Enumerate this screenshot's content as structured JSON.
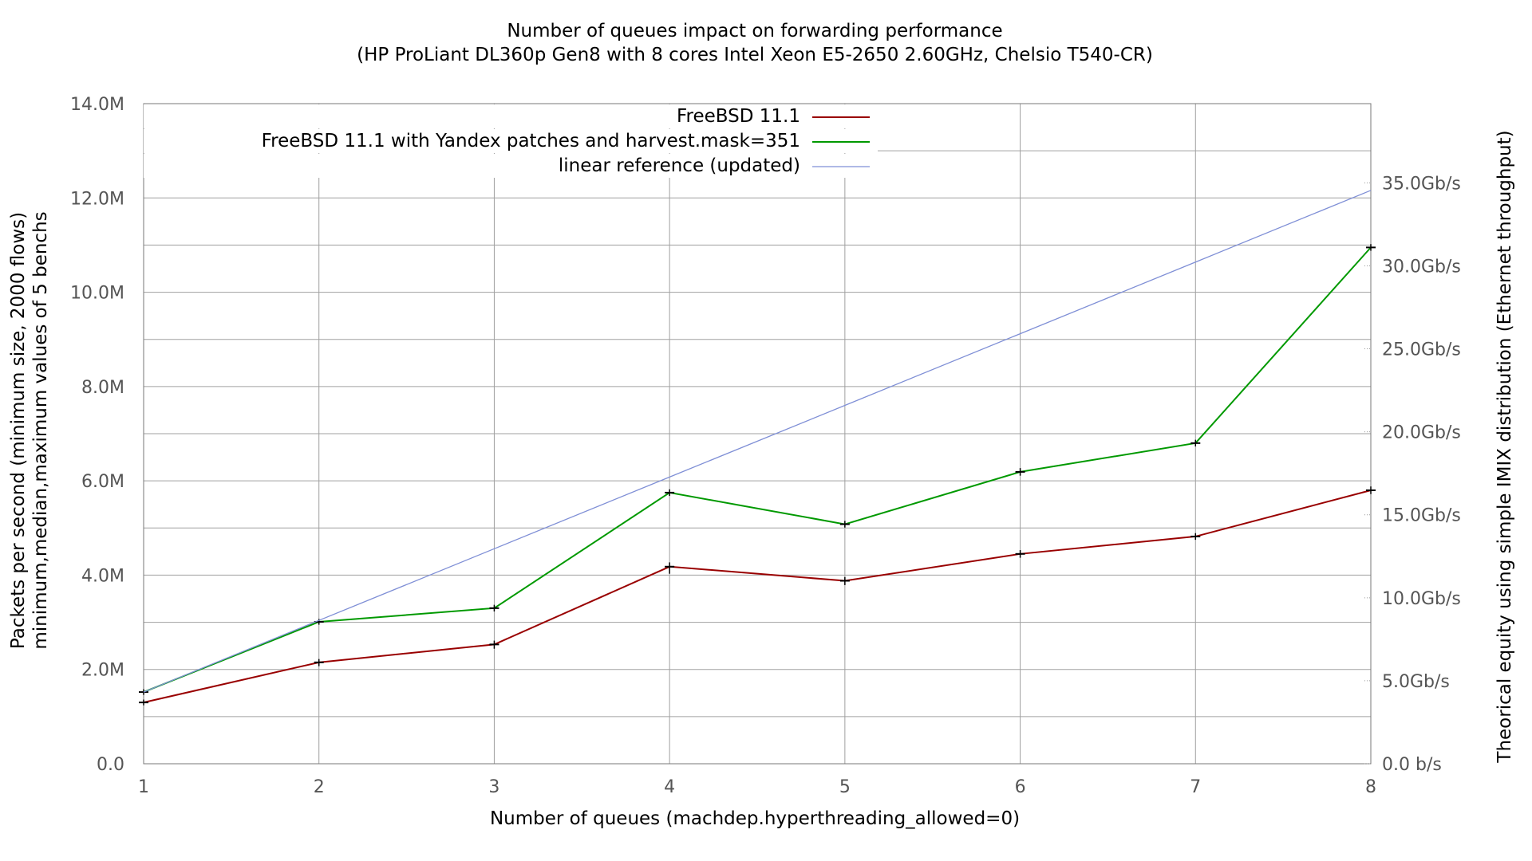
{
  "chart_data": {
    "type": "line",
    "title_line1": "Number of queues impact on forwarding performance",
    "title_line2": "(HP ProLiant DL360p Gen8 with 8 cores Intel Xeon E5-2650 2.60GHz, Chelsio T540-CR)",
    "xlabel": "Number of queues (machdep.hyperthreading_allowed=0)",
    "ylabel_line1": "Packets per second (minimum size, 2000 flows)",
    "ylabel_line2": "minimum,median,maximum values of 5 benchs",
    "y2label": "Theorical equity using simple IMIX distribution (Ethernet throughput)",
    "x": [
      1,
      2,
      3,
      4,
      5,
      6,
      7,
      8
    ],
    "xlim": [
      1,
      8
    ],
    "ylim": [
      0,
      14000000
    ],
    "grid": true,
    "legend_position": "top-center",
    "x_ticks": [
      "1",
      "2",
      "3",
      "4",
      "5",
      "6",
      "7",
      "8"
    ],
    "y_ticks": [
      {
        "value": 0,
        "label": "0.0"
      },
      {
        "value": 2000000,
        "label": "2.0M"
      },
      {
        "value": 4000000,
        "label": "4.0M"
      },
      {
        "value": 6000000,
        "label": "6.0M"
      },
      {
        "value": 8000000,
        "label": "8.0M"
      },
      {
        "value": 10000000,
        "label": "10.0M"
      },
      {
        "value": 12000000,
        "label": "12.0M"
      },
      {
        "value": 14000000,
        "label": "14.0M"
      }
    ],
    "y2_ticks": [
      {
        "value": 0,
        "label": "0.0 b/s"
      },
      {
        "value": 1760000,
        "label": "5.0Gb/s"
      },
      {
        "value": 3520000,
        "label": "10.0Gb/s"
      },
      {
        "value": 5280000,
        "label": "15.0Gb/s"
      },
      {
        "value": 7040000,
        "label": "20.0Gb/s"
      },
      {
        "value": 8800000,
        "label": "25.0Gb/s"
      },
      {
        "value": 10560000,
        "label": "30.0Gb/s"
      },
      {
        "value": 12320000,
        "label": "35.0Gb/s"
      }
    ],
    "series": [
      {
        "name": "FreeBSD 11.1",
        "color": "#990000",
        "values": [
          1300000,
          2150000,
          2530000,
          4180000,
          3880000,
          4450000,
          4820000,
          5800000
        ],
        "min": [
          1290000,
          2120000,
          2490000,
          4080000,
          3840000,
          4420000,
          4800000,
          5770000
        ],
        "max": [
          1310000,
          2170000,
          2560000,
          4220000,
          3910000,
          4480000,
          4840000,
          5830000
        ],
        "error_bars": true
      },
      {
        "name": "FreeBSD 11.1 with Yandex patches and harvest.mask=351",
        "color": "#009900",
        "values": [
          1520000,
          3010000,
          3300000,
          5750000,
          5080000,
          6190000,
          6800000,
          10950000
        ],
        "min": [
          1510000,
          3000000,
          3280000,
          5730000,
          5060000,
          6160000,
          6780000,
          10930000
        ],
        "max": [
          1530000,
          3020000,
          3320000,
          5770000,
          5100000,
          6220000,
          6820000,
          10970000
        ],
        "error_bars": true
      },
      {
        "name": "linear reference (updated)",
        "color": "#7f8fd6",
        "values": [
          1520000,
          3040000,
          4560000,
          6080000,
          7600000,
          9120000,
          10640000,
          12160000
        ],
        "error_bars": false
      }
    ]
  }
}
